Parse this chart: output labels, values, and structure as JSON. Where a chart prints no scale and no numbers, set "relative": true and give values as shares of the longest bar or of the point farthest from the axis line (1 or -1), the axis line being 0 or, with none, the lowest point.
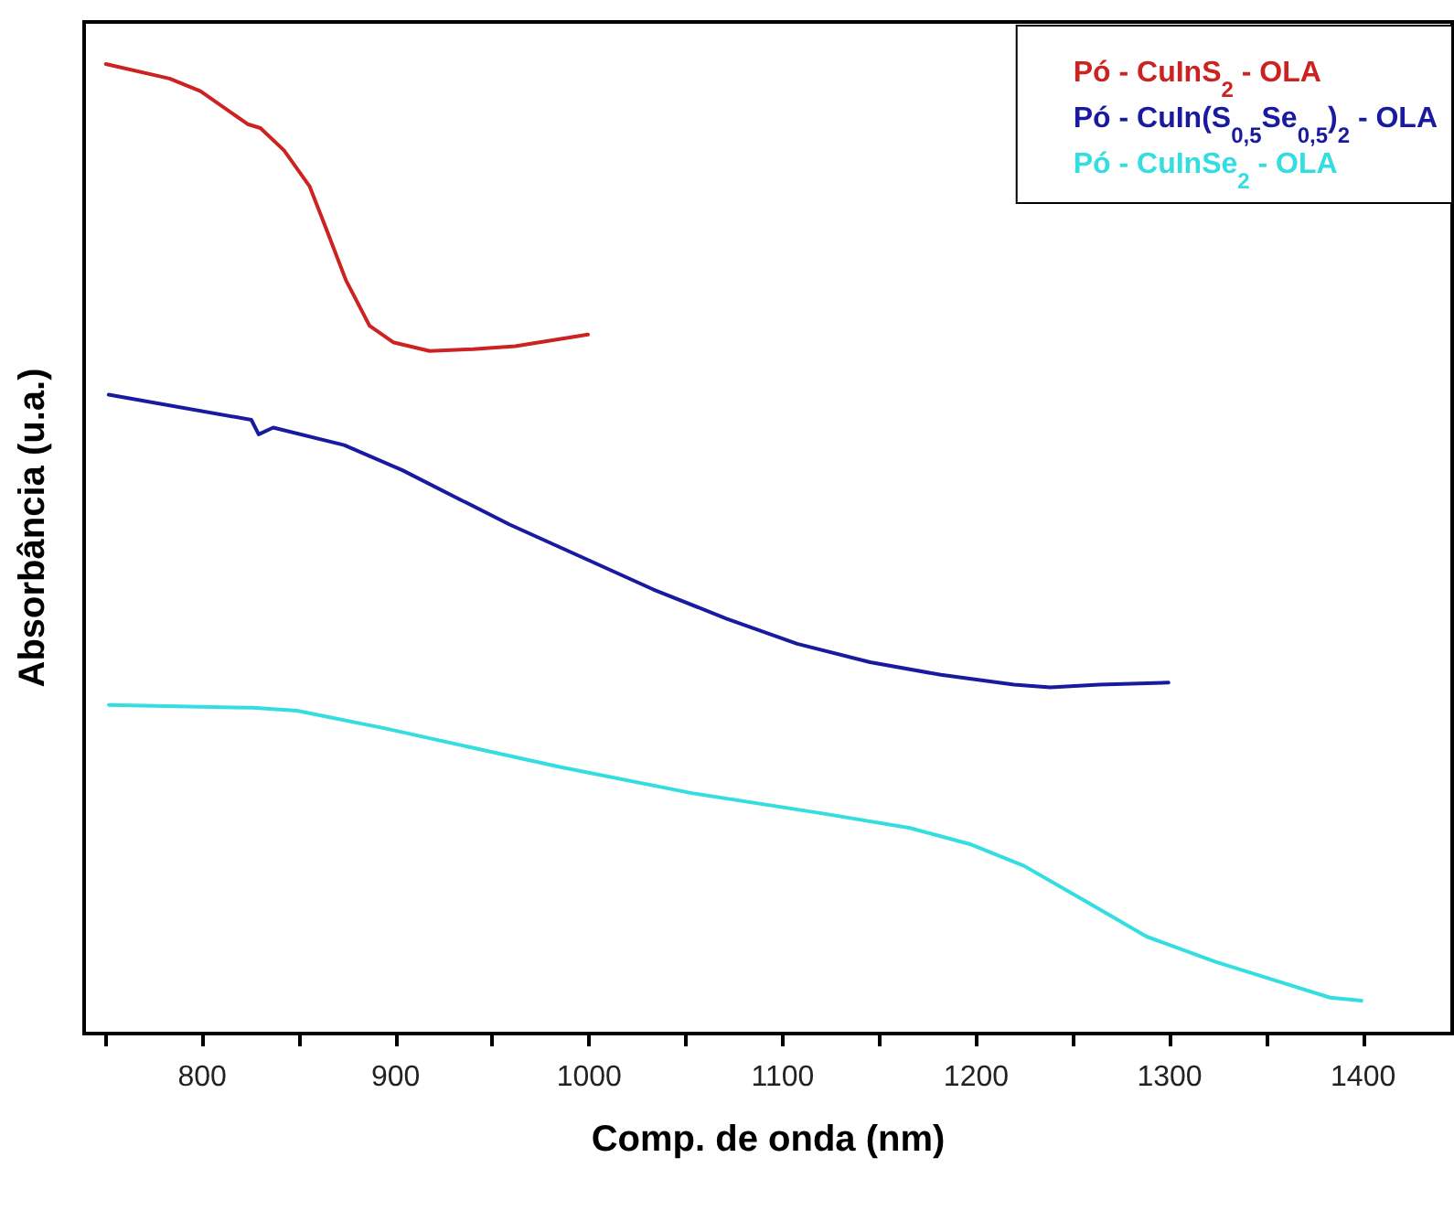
{
  "chart_data": {
    "type": "line",
    "xlabel": "Comp. de onda (nm)",
    "ylabel": "Absorbância (u.a.)",
    "relative": true,
    "xlim": [
      739,
      1446
    ],
    "xticks": [
      {
        "value": 750,
        "label": null
      },
      800,
      {
        "value": 850,
        "label": null
      },
      900,
      {
        "value": 950,
        "label": null
      },
      1000,
      {
        "value": 1050,
        "label": null
      },
      1100,
      {
        "value": 1150,
        "label": null
      },
      1200,
      {
        "value": 1250,
        "label": null
      },
      1300,
      {
        "value": 1350,
        "label": null
      },
      1400
    ],
    "legend": "top right",
    "grid": false,
    "marker": "none",
    "line_style": "solid",
    "series": [
      {
        "name": "Pó - CuInS$_{2}$ - OLA",
        "color": "#cc2222",
        "x": [
          750.2,
          783.1,
          799.1,
          823.5,
          830.1,
          842.3,
          855.5,
          864.9,
          874.3,
          886.5,
          898.7,
          917.5,
          940.1,
          961.8,
          999.4
        ],
        "values": [
          1.0,
          0.985,
          0.972,
          0.938,
          0.934,
          0.911,
          0.874,
          0.826,
          0.777,
          0.73,
          0.713,
          0.704,
          0.706,
          0.709,
          0.721
        ]
      },
      {
        "name": "Pó - CuIn(S$_{0,5}$Se$_{0,5}$)$_{2}$ - OLA",
        "color": "#1a1aa0",
        "x": [
          751.7,
          825.4,
          829.2,
          836.7,
          873.4,
          903.5,
          933.1,
          958.9,
          996.6,
          1033.2,
          1070.9,
          1107.5,
          1145.2,
          1181.8,
          1219.5,
          1238.3,
          1263.7,
          1299.4
        ],
        "values": [
          0.659,
          0.633,
          0.618,
          0.625,
          0.607,
          0.581,
          0.551,
          0.525,
          0.491,
          0.458,
          0.428,
          0.402,
          0.383,
          0.37,
          0.36,
          0.357,
          0.36,
          0.362
        ]
      },
      {
        "name": "Pó - CuInSe$_{2}$ - OLA",
        "color": "#33dde0",
        "x": [
          751.8,
          826.3,
          848.9,
          894,
          939.2,
          984.8,
          1053,
          1120.7,
          1165.8,
          1197.4,
          1224.7,
          1256.1,
          1288.1,
          1323.8,
          1360.5,
          1383,
          1399.1
        ],
        "values": [
          0.339,
          0.336,
          0.333,
          0.315,
          0.295,
          0.275,
          0.248,
          0.227,
          0.212,
          0.195,
          0.173,
          0.137,
          0.1,
          0.074,
          0.051,
          0.037,
          0.034
        ]
      }
    ]
  }
}
